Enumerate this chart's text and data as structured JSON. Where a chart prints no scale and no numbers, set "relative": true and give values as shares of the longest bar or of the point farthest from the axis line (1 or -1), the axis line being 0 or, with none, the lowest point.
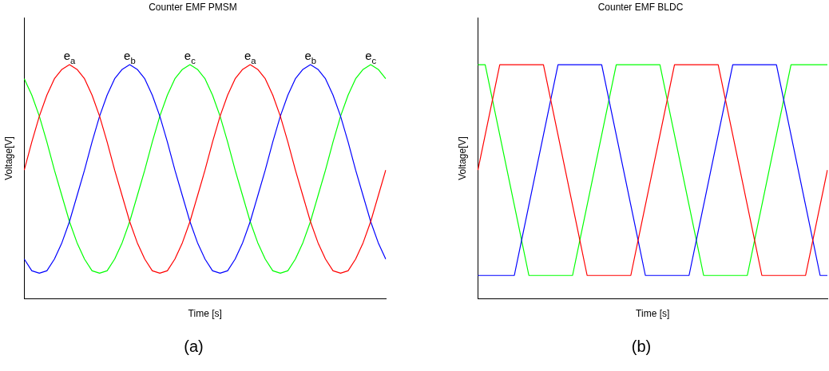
{
  "chart_data": [
    {
      "type": "line",
      "title": "Counter EMF PMSM",
      "xlabel": "Time [s]",
      "ylabel": "Voltage[V]",
      "relative": true,
      "annotations": [
        "(a)"
      ],
      "categories": [
        null,
        null,
        null,
        null,
        null,
        null,
        null,
        null,
        null,
        null,
        null,
        null,
        null,
        null,
        null,
        null,
        null,
        null,
        null,
        null,
        null,
        null,
        null,
        null,
        null,
        null,
        null,
        null,
        null,
        null,
        null,
        null,
        null,
        null,
        null,
        null,
        null,
        null,
        null,
        null,
        null,
        null,
        null,
        null,
        null,
        null,
        null,
        null,
        null
      ],
      "series": [
        {
          "name": "e$_{a}$",
          "color": "#ff0000",
          "values": [
            0.55,
            0.67,
            0.78,
            0.87,
            0.94,
            0.98,
            1,
            0.98,
            0.94,
            0.87,
            0.78,
            0.67,
            0.55,
            0.44,
            0.33,
            0.24,
            0.17,
            0.12,
            0.11,
            0.12,
            0.17,
            0.24,
            0.33,
            0.44,
            0.55,
            0.67,
            0.78,
            0.87,
            0.94,
            0.98,
            1,
            0.98,
            0.94,
            0.87,
            0.78,
            0.67,
            0.55,
            0.44,
            0.33,
            0.24,
            0.17,
            0.12,
            0.11,
            0.12,
            0.17,
            0.24,
            0.33,
            0.44,
            0.55
          ]
        },
        {
          "name": "e$_{b}$",
          "color": "#0000ff",
          "values": [
            0.17,
            0.12,
            0.11,
            0.12,
            0.17,
            0.24,
            0.33,
            0.44,
            0.55,
            0.67,
            0.78,
            0.87,
            0.94,
            0.98,
            1,
            0.98,
            0.94,
            0.87,
            0.78,
            0.67,
            0.55,
            0.44,
            0.33,
            0.24,
            0.17,
            0.12,
            0.11,
            0.12,
            0.17,
            0.24,
            0.33,
            0.44,
            0.55,
            0.67,
            0.78,
            0.87,
            0.94,
            0.98,
            1,
            0.98,
            0.94,
            0.87,
            0.78,
            0.67,
            0.55,
            0.44,
            0.33,
            0.24,
            0.17
          ]
        },
        {
          "name": "e$_{c}$",
          "color": "#00ff00",
          "values": [
            0.94,
            0.87,
            0.78,
            0.67,
            0.55,
            0.44,
            0.33,
            0.24,
            0.17,
            0.12,
            0.11,
            0.12,
            0.17,
            0.24,
            0.33,
            0.44,
            0.55,
            0.67,
            0.78,
            0.87,
            0.94,
            0.98,
            1,
            0.98,
            0.94,
            0.87,
            0.78,
            0.67,
            0.55,
            0.44,
            0.33,
            0.24,
            0.17,
            0.12,
            0.11,
            0.12,
            0.17,
            0.24,
            0.33,
            0.44,
            0.55,
            0.67,
            0.78,
            0.87,
            0.94,
            0.98,
            1,
            0.98,
            0.94
          ]
        }
      ]
    },
    {
      "type": "line",
      "title": "Counter EMF BLDC",
      "xlabel": "Time [s]",
      "ylabel": "Voltage[V]",
      "relative": true,
      "annotations": [
        "(b)"
      ],
      "categories": [
        null,
        null,
        null,
        null,
        null,
        null,
        null,
        null,
        null,
        null,
        null,
        null,
        null,
        null,
        null,
        null,
        null,
        null,
        null,
        null,
        null,
        null,
        null,
        null,
        null,
        null,
        null,
        null,
        null,
        null,
        null,
        null,
        null,
        null,
        null,
        null,
        null,
        null,
        null,
        null,
        null,
        null,
        null,
        null,
        null,
        null,
        null,
        null,
        null
      ],
      "series": [
        {
          "color": "#ff0000",
          "values": [
            0.55,
            0.7,
            0.85,
            1,
            1,
            1,
            1,
            1,
            1,
            1,
            0.85,
            0.7,
            0.55,
            0.4,
            0.25,
            0.1,
            0.1,
            0.1,
            0.1,
            0.1,
            0.1,
            0.1,
            0.25,
            0.4,
            0.55,
            0.7,
            0.85,
            1,
            1,
            1,
            1,
            1,
            1,
            1,
            0.85,
            0.7,
            0.55,
            0.4,
            0.25,
            0.1,
            0.1,
            0.1,
            0.1,
            0.1,
            0.1,
            0.1,
            0.25,
            0.4,
            0.55
          ]
        },
        {
          "color": "#0000ff",
          "values": [
            0.1,
            0.1,
            0.1,
            0.1,
            0.1,
            0.1,
            0.25,
            0.4,
            0.55,
            0.7,
            0.85,
            1,
            1,
            1,
            1,
            1,
            1,
            1,
            0.85,
            0.7,
            0.55,
            0.4,
            0.25,
            0.1,
            0.1,
            0.1,
            0.1,
            0.1,
            0.1,
            0.1,
            0.25,
            0.4,
            0.55,
            0.7,
            0.85,
            1,
            1,
            1,
            1,
            1,
            1,
            1,
            0.85,
            0.7,
            0.55,
            0.4,
            0.25,
            0.1,
            0.1
          ]
        },
        {
          "color": "#00ff00",
          "values": [
            1,
            1,
            0.85,
            0.7,
            0.55,
            0.4,
            0.25,
            0.1,
            0.1,
            0.1,
            0.1,
            0.1,
            0.1,
            0.1,
            0.25,
            0.4,
            0.55,
            0.7,
            0.85,
            1,
            1,
            1,
            1,
            1,
            1,
            1,
            0.85,
            0.7,
            0.55,
            0.4,
            0.25,
            0.1,
            0.1,
            0.1,
            0.1,
            0.1,
            0.1,
            0.1,
            0.25,
            0.4,
            0.55,
            0.7,
            0.85,
            1,
            1,
            1,
            1,
            1,
            1
          ]
        }
      ]
    }
  ]
}
